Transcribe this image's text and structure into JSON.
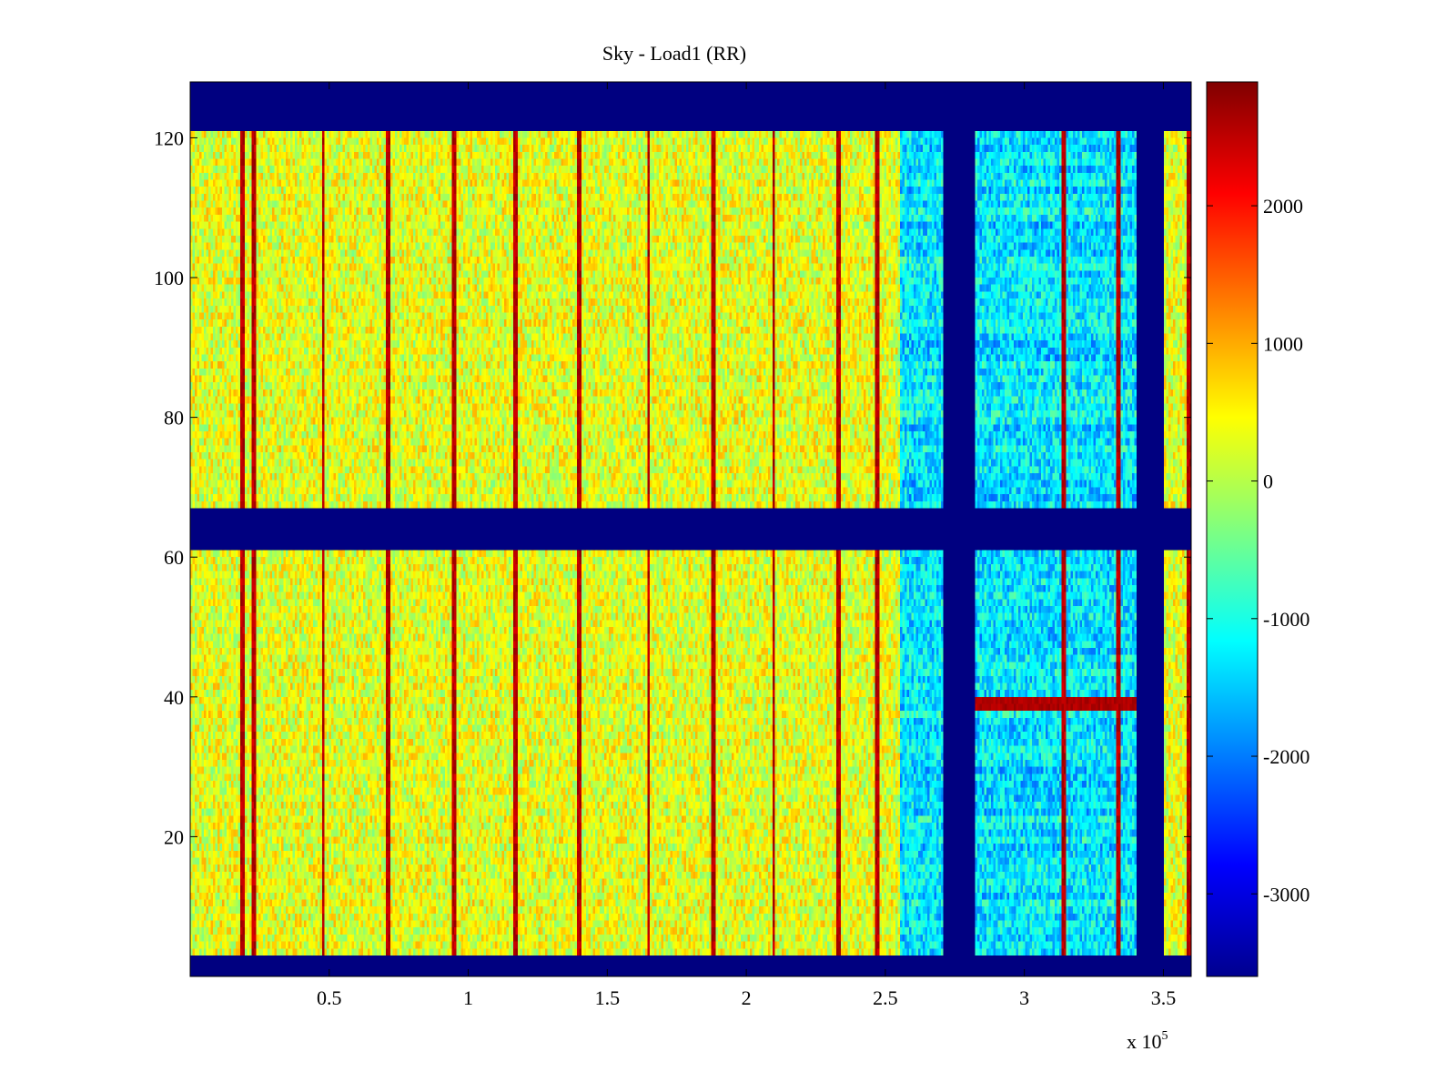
{
  "chart_data": {
    "type": "heatmap",
    "title": "Sky - Load1 (RR)",
    "xlabel": "",
    "ylabel": "",
    "x_multiplier_label": "x 10",
    "x_multiplier_exponent": "5",
    "xlim": [
      0,
      3.6
    ],
    "ylim": [
      0,
      128
    ],
    "x_ticks": [
      0.5,
      1,
      1.5,
      2,
      2.5,
      3,
      3.5
    ],
    "x_tick_labels": [
      "0.5",
      "1",
      "1.5",
      "2",
      "2.5",
      "3",
      "3.5"
    ],
    "y_ticks": [
      20,
      40,
      60,
      80,
      100,
      120
    ],
    "y_tick_labels": [
      "20",
      "40",
      "60",
      "80",
      "100",
      "120"
    ],
    "colorbar": {
      "colormap": "jet",
      "range": [
        -3600,
        2900
      ],
      "ticks": [
        -3000,
        -2000,
        -1000,
        0,
        1000,
        2000
      ],
      "tick_labels": [
        "-3000",
        "-2000",
        "-1000",
        "0",
        "1000",
        "2000"
      ]
    },
    "masked_row_bands": [
      [
        0,
        3
      ],
      [
        61,
        67
      ],
      [
        121,
        128
      ]
    ],
    "masked_column_bands": [
      [
        2.71,
        2.82
      ],
      [
        3.4,
        3.5
      ]
    ],
    "regions": [
      {
        "x_range": [
          0,
          2.55
        ],
        "typical_value": 300,
        "description_level": "high"
      },
      {
        "x_range": [
          2.55,
          3.4
        ],
        "typical_value": -1300,
        "description_level": "low"
      },
      {
        "x_range": [
          3.5,
          3.6
        ],
        "typical_value": 300,
        "description_level": "high"
      }
    ],
    "hot_row": {
      "y": 39,
      "x_range": [
        2.82,
        3.4
      ],
      "value": 2600
    },
    "stripe_columns": [
      0.19,
      0.23,
      0.48,
      0.71,
      0.95,
      1.17,
      1.4,
      1.65,
      1.88,
      2.1,
      2.33,
      2.47,
      3.14,
      3.34,
      3.59
    ]
  },
  "colors": {
    "mask": "#00008f",
    "background": "#ffffff",
    "axis": "#000000"
  }
}
